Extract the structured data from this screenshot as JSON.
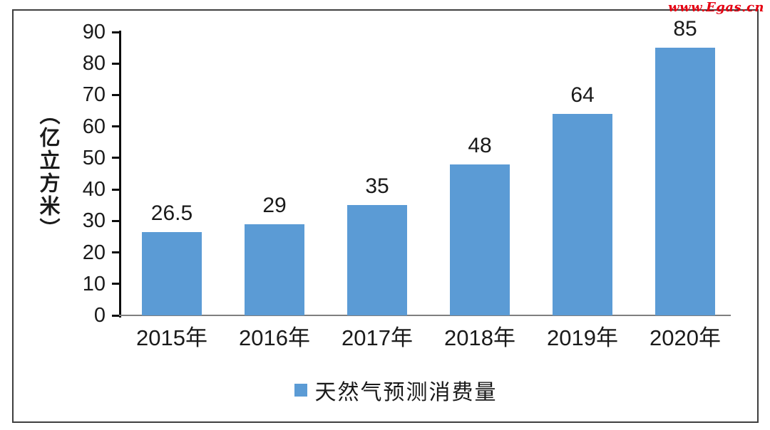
{
  "watermark": "www.Egas.cn",
  "chart_data": {
    "type": "bar",
    "title": "",
    "categories": [
      "2015年",
      "2016年",
      "2017年",
      "2018年",
      "2019年",
      "2020年"
    ],
    "values": [
      26.5,
      29,
      35,
      48,
      64,
      85
    ],
    "value_labels": [
      "26.5",
      "29",
      "35",
      "48",
      "64",
      "85"
    ],
    "xlabel": "",
    "ylabel": "（亿立方米）",
    "ylim": [
      0,
      90
    ],
    "yticks": [
      0,
      10,
      20,
      30,
      40,
      50,
      60,
      70,
      80,
      90
    ],
    "grid": false,
    "bar_color": "#5B9BD5",
    "legend_position": "bottom",
    "legend": [
      {
        "label": "天然气预测消费量",
        "color": "#5B9BD5"
      }
    ]
  },
  "colors": {
    "bar": "#5B9BD5",
    "text": "#1a1a1a",
    "axis": "#0d0d0d",
    "baseline": "#7f7f7f",
    "frame_border": "#3f3f3f",
    "watermark": "#e60012",
    "background": "#ffffff"
  }
}
